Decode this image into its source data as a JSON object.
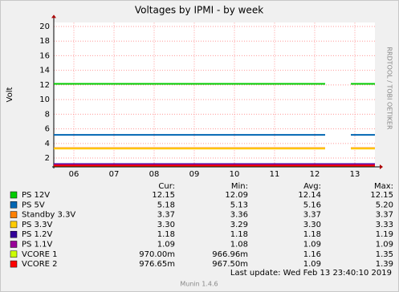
{
  "chart_data": {
    "type": "line",
    "title": "Voltages by IPMI - by week",
    "y_label": "Volt",
    "watermark": "RRDTOOL / TOBI OETIKER",
    "x": [
      5.5,
      12.26,
      12.58,
      12.9,
      13.5
    ],
    "xlim": [
      5.5,
      13.5
    ],
    "xticks": [
      {
        "value": 6,
        "label": "06"
      },
      {
        "value": 7,
        "label": "07"
      },
      {
        "value": 8,
        "label": "08"
      },
      {
        "value": 9,
        "label": "09"
      },
      {
        "value": 10,
        "label": "10"
      },
      {
        "value": 11,
        "label": "11"
      },
      {
        "value": 12,
        "label": "12"
      },
      {
        "value": 13,
        "label": "13"
      }
    ],
    "ylim": [
      0.8,
      20.5
    ],
    "yticks": [
      2,
      4,
      6,
      8,
      10,
      12,
      14,
      16,
      18,
      20
    ],
    "grid": true,
    "series": [
      {
        "name": "PS 12V",
        "color": "#00cc00",
        "values": [
          12.15,
          12.15,
          null,
          12.15,
          12.15
        ]
      },
      {
        "name": "PS 5V",
        "color": "#0066b3",
        "values": [
          5.18,
          5.18,
          null,
          5.18,
          5.18
        ]
      },
      {
        "name": "Standby 3.3V",
        "color": "#ff8000",
        "values": [
          3.37,
          3.37,
          null,
          3.37,
          3.37
        ]
      },
      {
        "name": "PS 3.3V",
        "color": "#ffcc00",
        "values": [
          3.3,
          3.3,
          null,
          3.3,
          3.3
        ]
      },
      {
        "name": "PS 1.2V",
        "color": "#330099",
        "values": [
          1.18,
          1.18,
          1.18,
          1.18,
          1.18
        ]
      },
      {
        "name": "PS 1.1V",
        "color": "#990099",
        "values": [
          1.09,
          1.09,
          1.09,
          1.09,
          1.09
        ]
      },
      {
        "name": "VCORE 1",
        "color": "#ccff00",
        "values": [
          0.97,
          0.97,
          0.97,
          0.97,
          0.97
        ]
      },
      {
        "name": "VCORE 2",
        "color": "#ff0000",
        "values": [
          0.98,
          0.98,
          0.98,
          0.98,
          0.98
        ]
      }
    ],
    "legend_table": {
      "columns": [
        "Cur:",
        "Min:",
        "Avg:",
        "Max:"
      ],
      "rows": [
        [
          "12.15",
          "12.09",
          "12.14",
          "12.15"
        ],
        [
          "5.18",
          "5.13",
          "5.16",
          "5.20"
        ],
        [
          "3.37",
          "3.36",
          "3.37",
          "3.37"
        ],
        [
          "3.30",
          "3.29",
          "3.30",
          "3.33"
        ],
        [
          "1.18",
          "1.18",
          "1.18",
          "1.19"
        ],
        [
          "1.09",
          "1.08",
          "1.09",
          "1.09"
        ],
        [
          "970.00m",
          "966.96m",
          "1.16",
          "1.35"
        ],
        [
          "976.65m",
          "967.50m",
          "1.09",
          "1.39"
        ]
      ]
    },
    "last_update": "Last update: Wed Feb 13 23:40:10 2019",
    "footer": "Munin 1.4.6"
  }
}
